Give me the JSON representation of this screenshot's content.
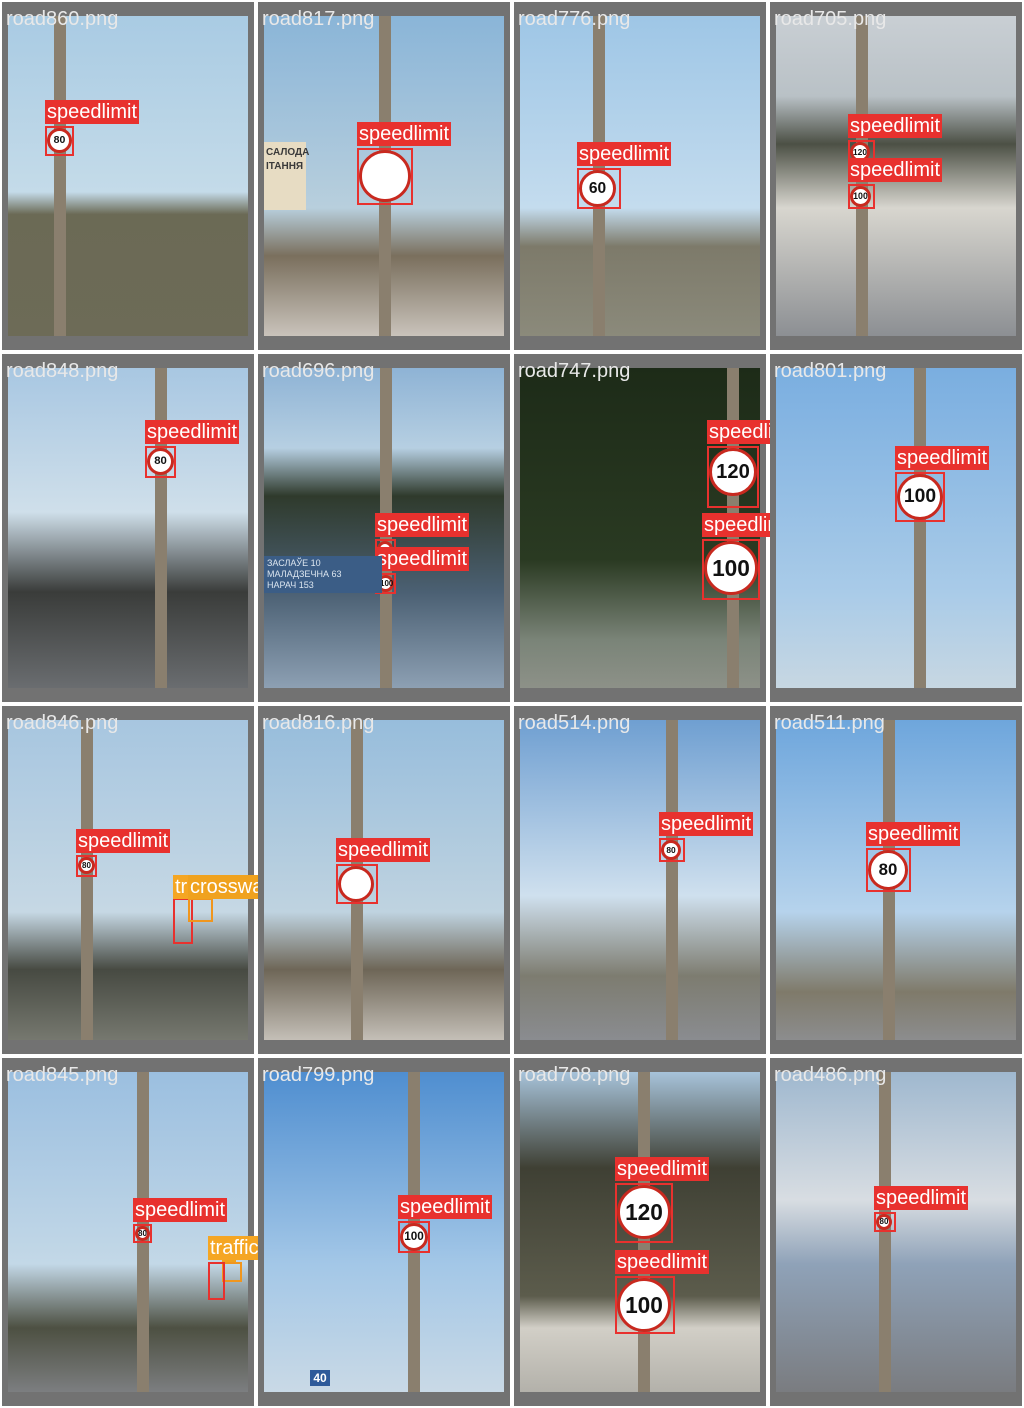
{
  "colors": {
    "speedlimit": "#e8312e",
    "crosswalk": "#f0961e",
    "trafficlight": "#f5a623",
    "label_text": "#ffffff",
    "filename_text": "#e8e8e8",
    "tile_frame": "#727272"
  },
  "tiles": [
    {
      "file": "road860.png",
      "detections": [
        {
          "label": "speedlimit",
          "sign": "80"
        }
      ]
    },
    {
      "file": "road817.png",
      "detections": [
        {
          "label": "speedlimit",
          "sign": ""
        }
      ],
      "billboard": "САЛОДА\nІТАННЯ"
    },
    {
      "file": "road776.png",
      "detections": [
        {
          "label": "speedlimit",
          "sign": "60"
        }
      ]
    },
    {
      "file": "road705.png",
      "detections": [
        {
          "label": "speedlimit",
          "sign": "120"
        },
        {
          "label": "speedlimit",
          "sign": "100"
        }
      ]
    },
    {
      "file": "road848.png",
      "detections": [
        {
          "label": "speedlimit",
          "sign": "80"
        }
      ]
    },
    {
      "file": "road696.png",
      "detections": [
        {
          "label": "speedlimit",
          "sign": ""
        },
        {
          "label": "speedlimit",
          "sign": "100"
        }
      ],
      "direction_sign": [
        "ЗАСЛАЎЕ 10",
        "МАЛАДЗЕЧНА 63",
        "НАРАЧ 153"
      ]
    },
    {
      "file": "road747.png",
      "detections": [
        {
          "label": "speedlimit",
          "sign": "120"
        },
        {
          "label": "speedlimit",
          "sign": "100"
        }
      ]
    },
    {
      "file": "road801.png",
      "detections": [
        {
          "label": "speedlimit",
          "sign": "100"
        }
      ]
    },
    {
      "file": "road846.png",
      "detections": [
        {
          "label": "speedlimit",
          "sign": "80"
        },
        {
          "label": "trafficlight",
          "display": "tr"
        },
        {
          "label": "crosswalk"
        }
      ]
    },
    {
      "file": "road816.png",
      "detections": [
        {
          "label": "speedlimit",
          "sign": ""
        }
      ]
    },
    {
      "file": "road514.png",
      "detections": [
        {
          "label": "speedlimit",
          "sign": "80"
        }
      ]
    },
    {
      "file": "road511.png",
      "detections": [
        {
          "label": "speedlimit",
          "sign": "80"
        }
      ]
    },
    {
      "file": "road845.png",
      "detections": [
        {
          "label": "speedlimit",
          "sign": "80"
        },
        {
          "label": "crosswalk",
          "display": "k"
        },
        {
          "label": "trafficlight"
        }
      ]
    },
    {
      "file": "road799.png",
      "detections": [
        {
          "label": "speedlimit",
          "sign": "100"
        }
      ],
      "road_sign": "40"
    },
    {
      "file": "road708.png",
      "detections": [
        {
          "label": "speedlimit",
          "sign": "120"
        },
        {
          "label": "speedlimit",
          "sign": "100"
        }
      ]
    },
    {
      "file": "road486.png",
      "detections": [
        {
          "label": "speedlimit",
          "sign": "80"
        }
      ]
    }
  ]
}
